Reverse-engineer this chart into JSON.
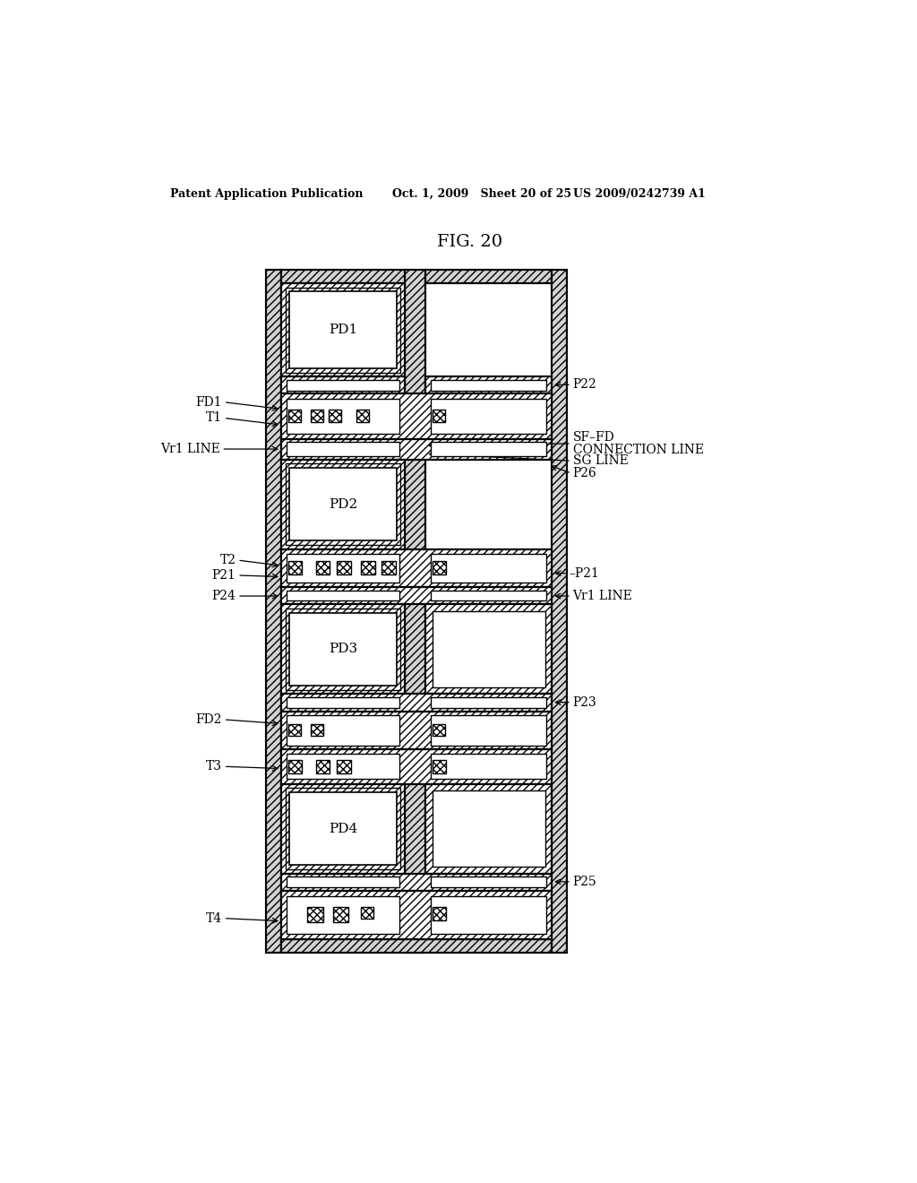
{
  "bg_color": "#ffffff",
  "line_color": "#000000",
  "title": "FIG. 20",
  "header_left": "Patent Application Publication",
  "header_mid": "Oct. 1, 2009   Sheet 20 of 25",
  "header_right": "US 2009/0242739 A1"
}
